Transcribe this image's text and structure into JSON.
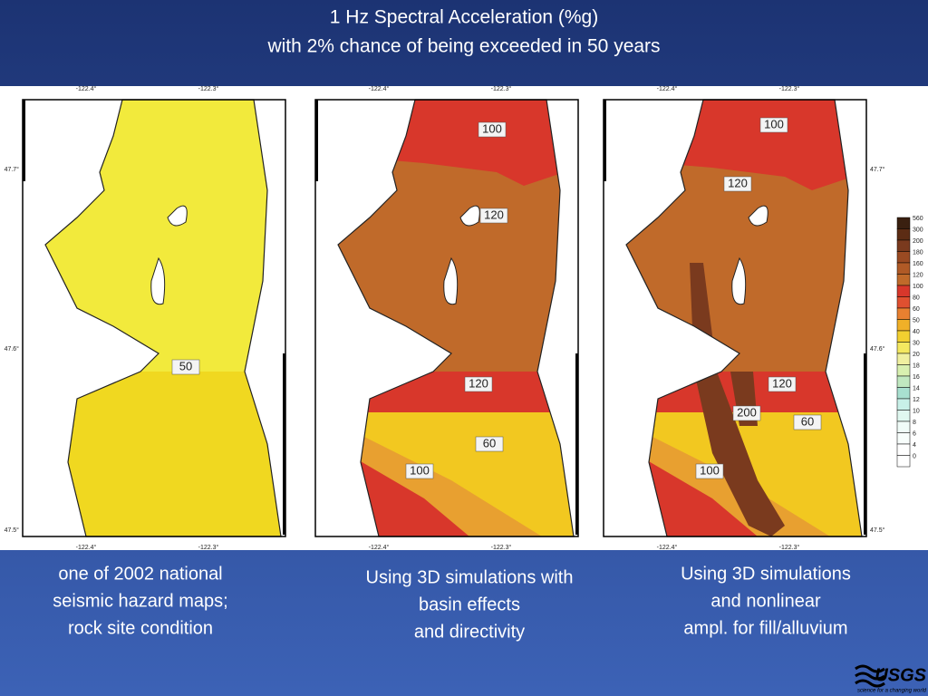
{
  "title": [
    "1 Hz Spectral Acceleration (%g)",
    "with 2% chance of being exceeded in 50 years"
  ],
  "maps": [
    {
      "lon_labels": [
        "-122.4°",
        "-122.3°"
      ],
      "lat_labels": [
        "47.7°",
        "47.6°",
        "47.5°"
      ],
      "contour_labels": [
        "50"
      ],
      "caption": [
        "one of 2002 national",
        "seismic hazard maps;",
        "rock site condition"
      ]
    },
    {
      "lon_labels": [
        "-122.4°",
        "-122.3°"
      ],
      "contour_labels": [
        "100",
        "120",
        "120",
        "60",
        "100"
      ],
      "caption": [
        "Using 3D simulations with",
        "basin effects",
        "and directivity"
      ]
    },
    {
      "lon_labels": [
        "-122.4°",
        "-122.3°"
      ],
      "lat_labels": [
        "47.7°",
        "47.6°",
        "47.5°"
      ],
      "contour_labels": [
        "100",
        "120",
        "120",
        "200",
        "60",
        "100"
      ],
      "caption": [
        "Using 3D simulations",
        "and nonlinear",
        "ampl. for fill/alluvium"
      ]
    }
  ],
  "legend": {
    "labels": [
      "560",
      "300",
      "200",
      "180",
      "160",
      "120",
      "100",
      "80",
      "60",
      "50",
      "40",
      "30",
      "20",
      "18",
      "16",
      "14",
      "12",
      "10",
      "8",
      "6",
      "4",
      "0"
    ],
    "colors": [
      "#3a2010",
      "#5c2c14",
      "#7a3a1e",
      "#9a4a22",
      "#b05a26",
      "#c06a2a",
      "#d8372b",
      "#e05030",
      "#e88030",
      "#f0b028",
      "#f2d030",
      "#f4e860",
      "#f0f0a0",
      "#d8f0b0",
      "#c0e8c0",
      "#a8e0d0",
      "#c8f0e8",
      "#e0f8f0",
      "#f0fcf8",
      "#f8fefc",
      "#ffffff",
      "#ffffff"
    ]
  },
  "logo": {
    "name": "USGS",
    "tagline": "science for a changing world"
  }
}
